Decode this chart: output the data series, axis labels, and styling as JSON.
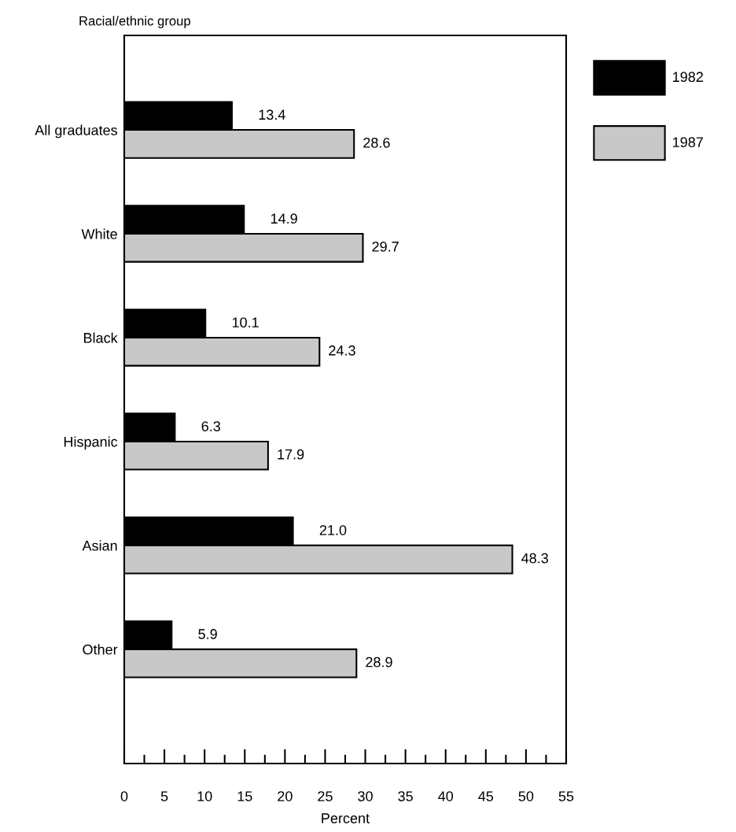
{
  "chart_data": {
    "type": "bar",
    "orientation": "horizontal",
    "ylabel": "Racial/ethnic group",
    "xlabel": "Percent",
    "categories": [
      "All graduates",
      "White",
      "Black",
      "Hispanic",
      "Asian",
      "Other"
    ],
    "series": [
      {
        "name": "1982",
        "color": "#000000",
        "values": [
          13.4,
          14.9,
          10.1,
          6.3,
          21.0,
          5.9
        ],
        "value_labels": [
          "13.4",
          "14.9",
          "10.1",
          "6.3",
          "21.0",
          "5.9"
        ]
      },
      {
        "name": "1987",
        "color": "#c8c8c8",
        "values": [
          28.6,
          29.7,
          24.3,
          17.9,
          48.3,
          28.9
        ],
        "value_labels": [
          "28.6",
          "29.7",
          "24.3",
          "17.9",
          "48.3",
          "28.9"
        ]
      }
    ],
    "xlim": [
      0,
      55
    ],
    "xticks": [
      0,
      {
        "value": 2.5,
        "label": null
      },
      5,
      {
        "value": 7.5,
        "label": null
      },
      10,
      {
        "value": 12.5,
        "label": null
      },
      15,
      {
        "value": 17.5,
        "label": null
      },
      20,
      {
        "value": 22.5,
        "label": null
      },
      25,
      {
        "value": 27.5,
        "label": null
      },
      30,
      {
        "value": 32.5,
        "label": null
      },
      35,
      {
        "value": 37.5,
        "label": null
      },
      40,
      {
        "value": 42.5,
        "label": null
      },
      45,
      {
        "value": 47.5,
        "label": null
      },
      50,
      {
        "value": 52.5,
        "label": null
      },
      55
    ],
    "grid": false,
    "legend": "top right"
  }
}
